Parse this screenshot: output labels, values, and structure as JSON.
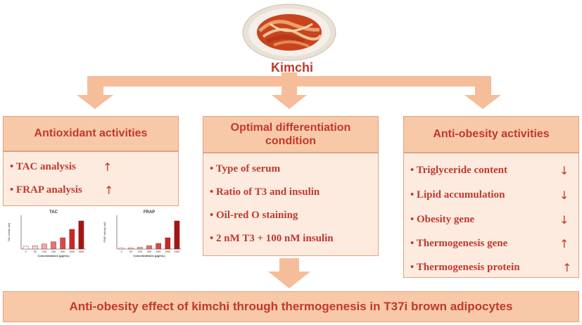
{
  "center": {
    "label": "Kimchi"
  },
  "left_box": {
    "title": "Antioxidant activities",
    "items": [
      {
        "text": "• TAC analysis",
        "arrow": "↑"
      },
      {
        "text": "• FRAP analysis",
        "arrow": "↑"
      }
    ]
  },
  "middle_box": {
    "title_line1": "Optimal differentiation",
    "title_line2": "condition",
    "items": [
      "• Type of serum",
      "• Ratio of T3 and insulin",
      "• Oil-red O staining",
      "• 2 nM T3 + 100 nM insulin"
    ]
  },
  "right_box": {
    "title": "Anti-obesity activities",
    "items": [
      {
        "text": "• Triglyceride content",
        "arrow": "↓"
      },
      {
        "text": "• Lipid accumulation",
        "arrow": "↓"
      },
      {
        "text": "• Obesity gene",
        "arrow": "↓"
      },
      {
        "text": "• Thermogenesis gene",
        "arrow": "↑"
      },
      {
        "text": "• Thermogenesis protein",
        "arrow": "↑"
      }
    ]
  },
  "bottom": {
    "text": "Anti-obesity effect of kimchi through thermogenesis in T37i brown adipocytes"
  },
  "chart_data": [
    {
      "type": "bar",
      "title": "TAC",
      "xlabel": "Concentrations (μg/mL)",
      "ylabel": "TAC activity (uM)",
      "categories": [
        "0",
        "50",
        "100",
        "250",
        "500",
        "1000",
        "2500"
      ],
      "values": [
        1,
        1.2,
        1.8,
        2.6,
        4,
        7,
        10
      ],
      "ylim": [
        0,
        12
      ],
      "colors": [
        "#ffffff",
        "#f7d3d3",
        "#f0a8a8",
        "#e57373",
        "#d94848",
        "#c62828",
        "#a31515"
      ]
    },
    {
      "type": "bar",
      "title": "FRAP",
      "xlabel": "Concentrations (μg/mL)",
      "ylabel": "FRAP activity (uM)",
      "categories": [
        "0",
        "50",
        "100",
        "250",
        "500",
        "1000",
        "2500"
      ],
      "values": [
        0.3,
        0.4,
        0.6,
        1.2,
        2,
        4,
        10
      ],
      "ylim": [
        0,
        12
      ],
      "colors": [
        "#ffffff",
        "#f7d3d3",
        "#f0a8a8",
        "#e57373",
        "#d94848",
        "#c62828",
        "#a31515"
      ]
    }
  ]
}
